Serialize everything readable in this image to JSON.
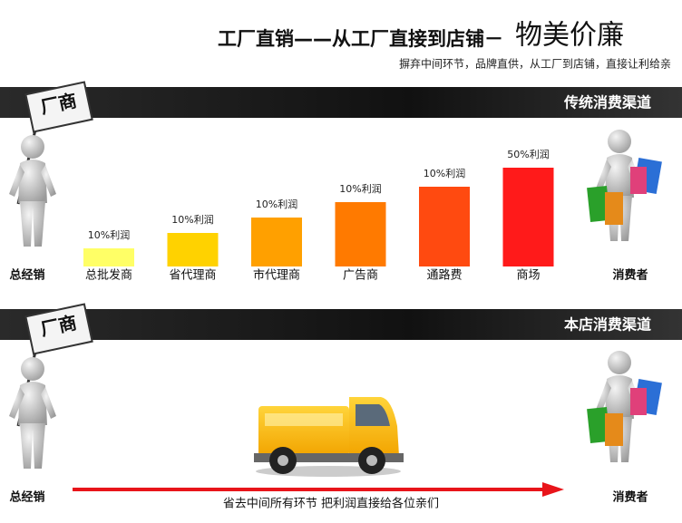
{
  "header": {
    "title": "工厂直销——从工厂直接到店铺－",
    "title_emphasis": "物美价廉",
    "subtitle": "摒弃中间环节，品牌直供，从工厂到店铺，直接让利给亲"
  },
  "traditional": {
    "heading": "传统消费渠道",
    "sign": "厂商",
    "start": "总经销",
    "end": "消费者",
    "steps": [
      {
        "label": "总批发商",
        "profit": "10%利润"
      },
      {
        "label": "省代理商",
        "profit": "10%利润"
      },
      {
        "label": "市代理商",
        "profit": "10%利润"
      },
      {
        "label": "广告商",
        "profit": "10%利润"
      },
      {
        "label": "通路费",
        "profit": "10%利润"
      },
      {
        "label": "商场",
        "profit": "50%利润"
      }
    ]
  },
  "ours": {
    "heading": "本店消费渠道",
    "sign": "厂商",
    "start": "总经销",
    "end": "消费者",
    "note": "省去中间所有环节 把利润直接给各位亲们"
  }
}
